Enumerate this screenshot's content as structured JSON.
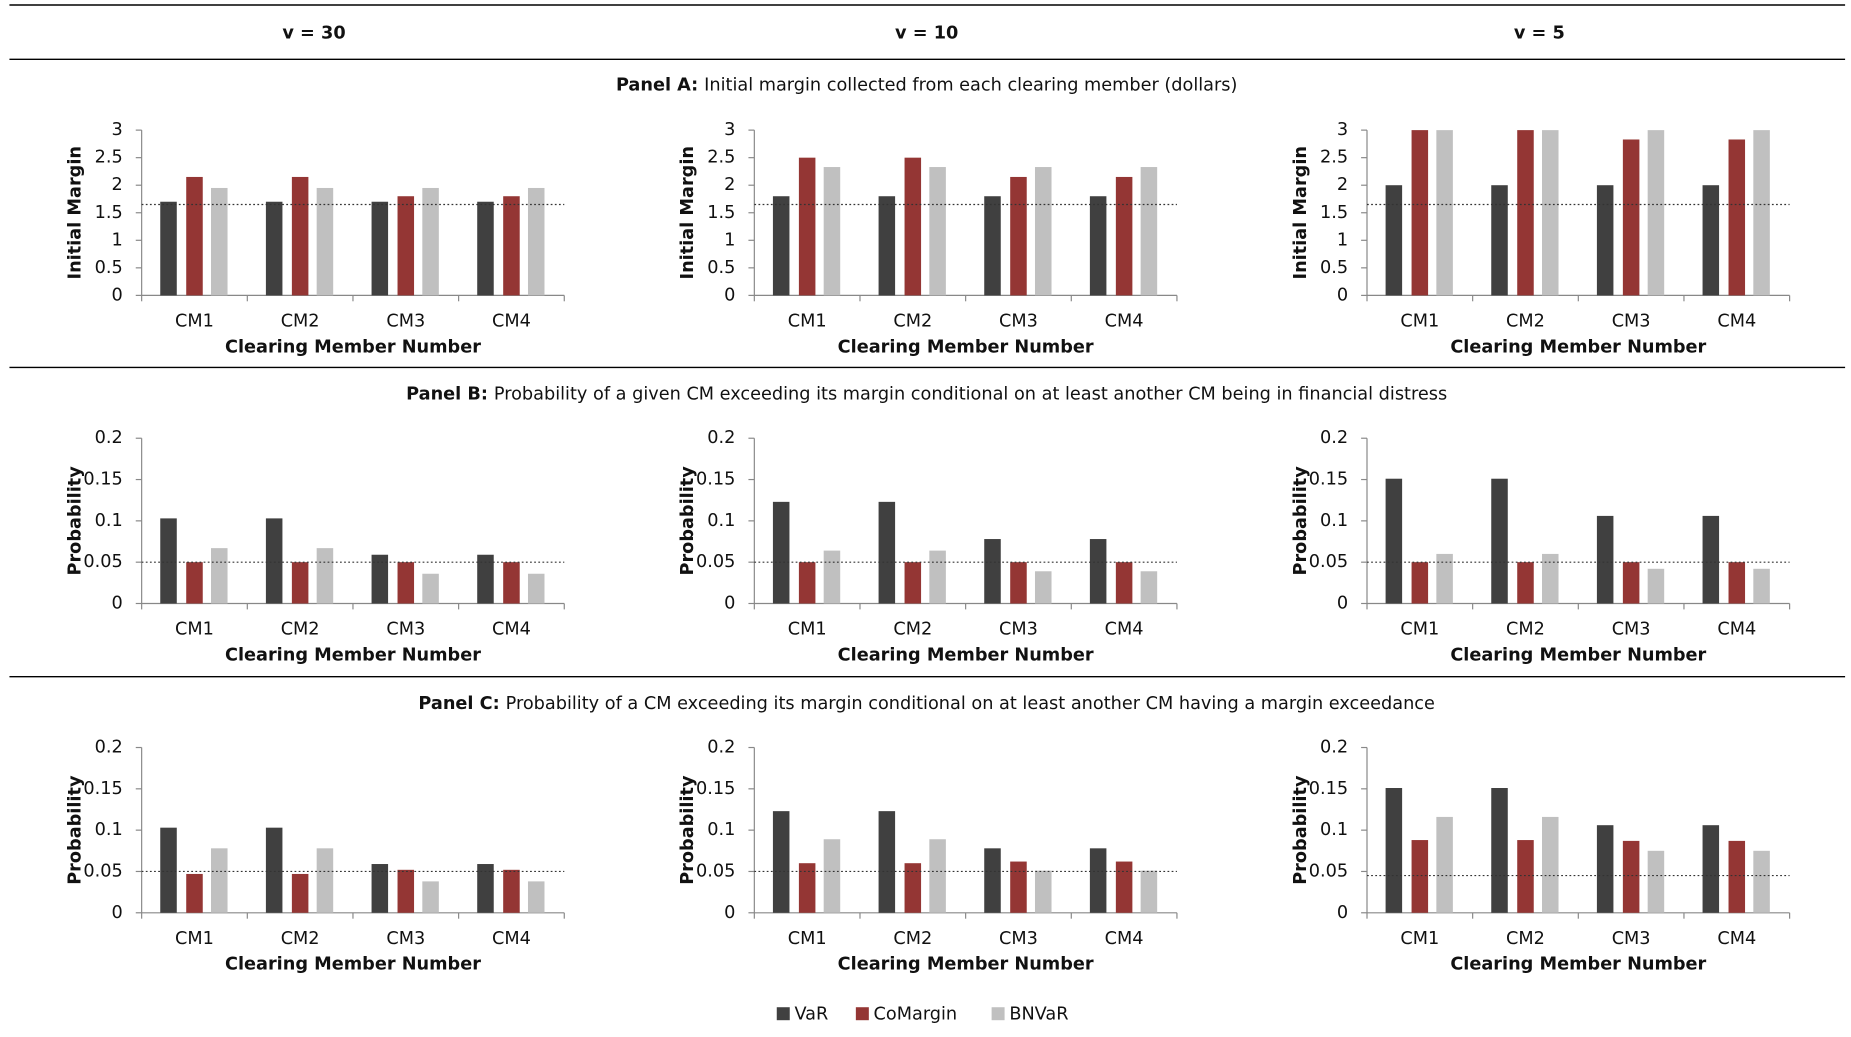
{
  "columns": [
    "v = 30",
    "v = 10",
    "v = 5"
  ],
  "panels": [
    {
      "label": "Panel A:",
      "title": "Initial margin collected from each clearing member (dollars)"
    },
    {
      "label": "Panel B:",
      "title": "Probability of a given CM exceeding its margin conditional on at least another CM being in financial distress"
    },
    {
      "label": "Panel C:",
      "title": "Probability of a CM exceeding its margin conditional on at least another CM having a margin exceedance"
    }
  ],
  "chart_data": [
    {
      "type": "bar",
      "categories": [
        "CM1",
        "CM2",
        "CM3",
        "CM4"
      ],
      "x_label": "Clearing Member Number",
      "y_label": "Initial Margin",
      "ylim": [
        0,
        3
      ],
      "yticks": [
        0,
        0.5,
        1,
        1.5,
        2,
        2.5,
        3
      ],
      "reference_line": 1.65,
      "series": [
        {
          "name": "VaR",
          "color": "#404040",
          "values": [
            1.7,
            1.7,
            1.7,
            1.7
          ]
        },
        {
          "name": "CoMargin",
          "color": "#943634",
          "values": [
            2.15,
            2.15,
            1.8,
            1.8
          ]
        },
        {
          "name": "BNVaR",
          "color": "#c0c0c0",
          "values": [
            1.95,
            1.95,
            1.95,
            1.95
          ]
        }
      ]
    },
    {
      "type": "bar",
      "categories": [
        "CM1",
        "CM2",
        "CM3",
        "CM4"
      ],
      "x_label": "Clearing Member Number",
      "y_label": "Initial Margin",
      "ylim": [
        0,
        3
      ],
      "yticks": [
        0,
        0.5,
        1,
        1.5,
        2,
        2.5,
        3
      ],
      "reference_line": 1.65,
      "series": [
        {
          "name": "VaR",
          "color": "#404040",
          "values": [
            1.8,
            1.8,
            1.8,
            1.8
          ]
        },
        {
          "name": "CoMargin",
          "color": "#943634",
          "values": [
            2.5,
            2.5,
            2.15,
            2.15
          ]
        },
        {
          "name": "BNVaR",
          "color": "#c0c0c0",
          "values": [
            2.33,
            2.33,
            2.33,
            2.33
          ]
        }
      ]
    },
    {
      "type": "bar",
      "categories": [
        "CM1",
        "CM2",
        "CM3",
        "CM4"
      ],
      "x_label": "Clearing Member Number",
      "y_label": "Initial Margin",
      "ylim": [
        0,
        3
      ],
      "yticks": [
        0,
        0.5,
        1,
        1.5,
        2,
        2.5,
        3
      ],
      "reference_line": 1.65,
      "series": [
        {
          "name": "VaR",
          "color": "#404040",
          "values": [
            2,
            2,
            2,
            2
          ]
        },
        {
          "name": "CoMargin",
          "color": "#943634",
          "values": [
            3,
            3,
            2.83,
            2.83
          ]
        },
        {
          "name": "BNVaR",
          "color": "#c0c0c0",
          "values": [
            3,
            3,
            3,
            3
          ]
        }
      ]
    },
    {
      "type": "bar",
      "categories": [
        "CM1",
        "CM2",
        "CM3",
        "CM4"
      ],
      "x_label": "Clearing Member Number",
      "y_label": "Probability",
      "ylim": [
        0,
        0.2
      ],
      "yticks": [
        0,
        0.05,
        0.1,
        0.15,
        0.2
      ],
      "reference_line": 0.05,
      "series": [
        {
          "name": "VaR",
          "color": "#404040",
          "values": [
            0.103,
            0.103,
            0.059,
            0.059
          ]
        },
        {
          "name": "CoMargin",
          "color": "#943634",
          "values": [
            0.05,
            0.05,
            0.05,
            0.05
          ]
        },
        {
          "name": "BNVaR",
          "color": "#c0c0c0",
          "values": [
            0.067,
            0.067,
            0.036,
            0.036
          ]
        }
      ]
    },
    {
      "type": "bar",
      "categories": [
        "CM1",
        "CM2",
        "CM3",
        "CM4"
      ],
      "x_label": "Clearing Member Number",
      "y_label": "Probability",
      "ylim": [
        0,
        0.2
      ],
      "yticks": [
        0,
        0.05,
        0.1,
        0.15,
        0.2
      ],
      "reference_line": 0.05,
      "series": [
        {
          "name": "VaR",
          "color": "#404040",
          "values": [
            0.123,
            0.123,
            0.078,
            0.078
          ]
        },
        {
          "name": "CoMargin",
          "color": "#943634",
          "values": [
            0.05,
            0.05,
            0.05,
            0.05
          ]
        },
        {
          "name": "BNVaR",
          "color": "#c0c0c0",
          "values": [
            0.064,
            0.064,
            0.039,
            0.039
          ]
        }
      ]
    },
    {
      "type": "bar",
      "categories": [
        "CM1",
        "CM2",
        "CM3",
        "CM4"
      ],
      "x_label": "Clearing Member Number",
      "y_label": "Probability",
      "ylim": [
        0,
        0.2
      ],
      "yticks": [
        0,
        0.05,
        0.1,
        0.15,
        0.2
      ],
      "reference_line": 0.05,
      "series": [
        {
          "name": "VaR",
          "color": "#404040",
          "values": [
            0.151,
            0.151,
            0.106,
            0.106
          ]
        },
        {
          "name": "CoMargin",
          "color": "#943634",
          "values": [
            0.05,
            0.05,
            0.05,
            0.05
          ]
        },
        {
          "name": "BNVaR",
          "color": "#c0c0c0",
          "values": [
            0.06,
            0.06,
            0.042,
            0.042
          ]
        }
      ]
    },
    {
      "type": "bar",
      "categories": [
        "CM1",
        "CM2",
        "CM3",
        "CM4"
      ],
      "x_label": "Clearing Member Number",
      "y_label": "Probability",
      "ylim": [
        0,
        0.2
      ],
      "yticks": [
        0,
        0.05,
        0.1,
        0.15,
        0.2
      ],
      "reference_line": 0.05,
      "series": [
        {
          "name": "VaR",
          "color": "#404040",
          "values": [
            0.103,
            0.103,
            0.059,
            0.059
          ]
        },
        {
          "name": "CoMargin",
          "color": "#943634",
          "values": [
            0.047,
            0.047,
            0.052,
            0.052
          ]
        },
        {
          "name": "BNVaR",
          "color": "#c0c0c0",
          "values": [
            0.078,
            0.078,
            0.038,
            0.038
          ]
        }
      ]
    },
    {
      "type": "bar",
      "categories": [
        "CM1",
        "CM2",
        "CM3",
        "CM4"
      ],
      "x_label": "Clearing Member Number",
      "y_label": "Probability",
      "ylim": [
        0,
        0.2
      ],
      "yticks": [
        0,
        0.05,
        0.1,
        0.15,
        0.2
      ],
      "reference_line": 0.05,
      "series": [
        {
          "name": "VaR",
          "color": "#404040",
          "values": [
            0.123,
            0.123,
            0.078,
            0.078
          ]
        },
        {
          "name": "CoMargin",
          "color": "#943634",
          "values": [
            0.06,
            0.06,
            0.062,
            0.062
          ]
        },
        {
          "name": "BNVaR",
          "color": "#c0c0c0",
          "values": [
            0.089,
            0.089,
            0.051,
            0.051
          ]
        }
      ]
    },
    {
      "type": "bar",
      "categories": [
        "CM1",
        "CM2",
        "CM3",
        "CM4"
      ],
      "x_label": "Clearing Member Number",
      "y_label": "Probability",
      "ylim": [
        0,
        0.2
      ],
      "yticks": [
        0,
        0.05,
        0.1,
        0.15,
        0.2
      ],
      "reference_line": 0.045,
      "series": [
        {
          "name": "VaR",
          "color": "#404040",
          "values": [
            0.151,
            0.151,
            0.106,
            0.106
          ]
        },
        {
          "name": "CoMargin",
          "color": "#943634",
          "values": [
            0.088,
            0.088,
            0.087,
            0.087
          ]
        },
        {
          "name": "BNVaR",
          "color": "#c0c0c0",
          "values": [
            0.116,
            0.116,
            0.075,
            0.075
          ]
        }
      ]
    }
  ]
}
